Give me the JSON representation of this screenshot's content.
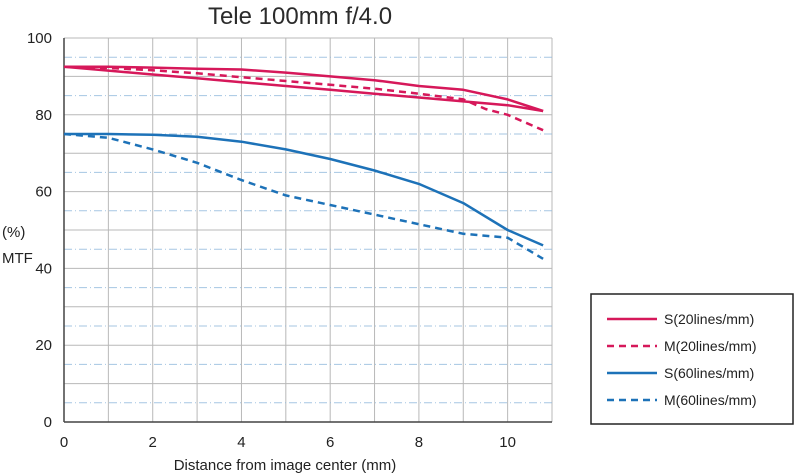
{
  "chart_data": {
    "type": "line",
    "title": "Tele 100mm f/4.0",
    "xlabel": "Distance from image center (mm)",
    "ylabel_top": "(%)",
    "ylabel_bottom": "MTF",
    "xlim": [
      0,
      11
    ],
    "ylim": [
      0,
      100
    ],
    "x_ticks": [
      0,
      2,
      4,
      6,
      8,
      10
    ],
    "y_ticks": [
      0,
      20,
      40,
      60,
      80,
      100
    ],
    "grid": true,
    "legend_position": "bottom-right",
    "series": [
      {
        "name": "S(20lines/mm)",
        "color": "#d6185a",
        "dash": "solid",
        "x": [
          0,
          1,
          2,
          3,
          4,
          5,
          6,
          7,
          8,
          9,
          10,
          10.8
        ],
        "y": [
          92.5,
          92.5,
          92.3,
          92,
          91.8,
          91,
          90,
          89,
          87.5,
          86.5,
          84,
          81
        ]
      },
      {
        "name": "S(20lines/mm)",
        "color": "#d6185a",
        "dash": "solid",
        "x": [
          0,
          1,
          2,
          3,
          4,
          5,
          6,
          7,
          8,
          9,
          10,
          10.8
        ],
        "y": [
          92.5,
          91.5,
          90.5,
          89.5,
          88.5,
          87.5,
          86.5,
          85.5,
          84.5,
          83.5,
          82.5,
          81
        ]
      },
      {
        "name": "M(20lines/mm)",
        "color": "#d6185a",
        "dash": "dashed",
        "x": [
          0,
          1,
          2,
          3,
          4,
          5,
          6,
          7,
          8,
          9,
          9.5,
          10,
          10.8
        ],
        "y": [
          92.5,
          92.2,
          91.6,
          90.8,
          89.8,
          88.8,
          87.8,
          86.8,
          85.5,
          84,
          81.5,
          80,
          76
        ]
      },
      {
        "name": "S(60lines/mm)",
        "color": "#1d72b8",
        "dash": "solid",
        "x": [
          0,
          1,
          2,
          3,
          4,
          5,
          6,
          7,
          8,
          9,
          10,
          10.8
        ],
        "y": [
          75,
          75,
          74.8,
          74.3,
          73,
          71,
          68.5,
          65.5,
          62,
          57,
          50,
          46
        ]
      },
      {
        "name": "M(60lines/mm)",
        "color": "#1d72b8",
        "dash": "dashed",
        "x": [
          0,
          1,
          2,
          3,
          4,
          5,
          6,
          7,
          8,
          9,
          10,
          10.8
        ],
        "y": [
          75,
          74,
          71,
          67.5,
          63,
          59,
          56.5,
          54,
          51.5,
          49,
          48,
          42.5
        ]
      }
    ],
    "legend": [
      {
        "label": "S(20lines/mm)",
        "color": "#d6185a",
        "dash": "solid"
      },
      {
        "label": "M(20lines/mm)",
        "color": "#d6185a",
        "dash": "dashed"
      },
      {
        "label": "S(60lines/mm)",
        "color": "#1d72b8",
        "dash": "solid"
      },
      {
        "label": "M(60lines/mm)",
        "color": "#1d72b8",
        "dash": "dashed"
      }
    ]
  }
}
